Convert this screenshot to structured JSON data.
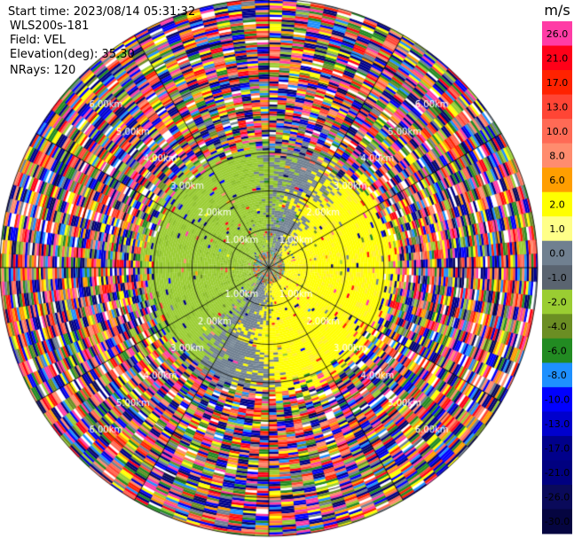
{
  "info": {
    "start_time": "Start time: 2023/08/14 05:31:32",
    "instrument": "WLS200s-181",
    "field": "Field: VEL",
    "elevation": "Elevation(deg): 35.30",
    "nrays": "NRays: 120"
  },
  "chart_data": {
    "type": "heatmap",
    "projection": "polar-ppi",
    "field": "VEL",
    "units": "m/s",
    "n_rays": 120,
    "elevation_deg": 35.3,
    "max_range_km": 7.0,
    "range_rings_km": [
      1.0,
      2.0,
      3.0,
      4.0,
      5.0,
      6.0,
      7.0
    ],
    "ring_labels": [
      "1.00km",
      "2.00km",
      "3.00km",
      "4.00km",
      "5.00km",
      "6.00km"
    ],
    "azimuth_spokes_deg": [
      0,
      30,
      60,
      90,
      120,
      150,
      180,
      210,
      240,
      270,
      300,
      330
    ],
    "valid_data_range_km": [
      0.4,
      3.2
    ],
    "colorbar": {
      "label": "m/s",
      "ticks": [
        "26.0",
        "21.0",
        "17.0",
        "13.0",
        "10.0",
        "8.0",
        "6.0",
        "2.0",
        "1.0",
        "0.0",
        "-1.0",
        "-2.0",
        "-4.0",
        "-6.0",
        "-8.0",
        "-10.0",
        "-13.0",
        "-17.0",
        "-21.0",
        "-26.0",
        "-30.0"
      ],
      "colors": [
        "#ff3ca5",
        "#ff0018",
        "#ff2200",
        "#ff4535",
        "#ff6a55",
        "#ff8c6e",
        "#ff9e00",
        "#ffff00",
        "#ffff88",
        "#708090",
        "#5a6470",
        "#9acd32",
        "#6b8e23",
        "#228b22",
        "#1e90ff",
        "#0000ff",
        "#0000cd",
        "#00008b",
        "#000080",
        "#0a0a5a",
        "#050540"
      ]
    }
  }
}
